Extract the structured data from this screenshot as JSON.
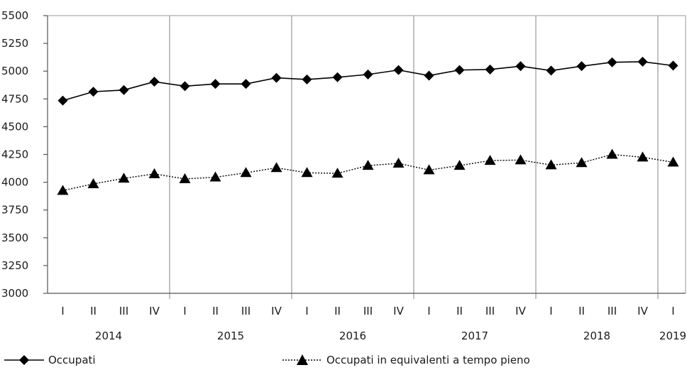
{
  "chart_data": {
    "type": "line",
    "title": "",
    "xlabel": "",
    "ylabel": "",
    "ylim": [
      3000,
      5500
    ],
    "yticks": [
      3000,
      3250,
      3500,
      3750,
      4000,
      4250,
      4500,
      4750,
      5000,
      5250,
      5500
    ],
    "quarters": [
      "I",
      "II",
      "III",
      "IV",
      "I",
      "II",
      "III",
      "IV",
      "I",
      "II",
      "III",
      "IV",
      "I",
      "II",
      "III",
      "IV",
      "I",
      "II",
      "III",
      "IV",
      "I"
    ],
    "years": [
      {
        "label": "2014",
        "start": 0,
        "end": 3
      },
      {
        "label": "2015",
        "start": 4,
        "end": 7
      },
      {
        "label": "2016",
        "start": 8,
        "end": 11
      },
      {
        "label": "2017",
        "start": 12,
        "end": 15
      },
      {
        "label": "2018",
        "start": 16,
        "end": 19
      },
      {
        "label": "2019",
        "start": 20,
        "end": 20
      }
    ],
    "grid": "vertical year separators",
    "legend_position": "bottom",
    "series": [
      {
        "name": "Occupati",
        "marker": "diamond",
        "line": "solid",
        "values": [
          4735,
          4815,
          4830,
          4905,
          4865,
          4885,
          4885,
          4940,
          4925,
          4945,
          4970,
          5010,
          4960,
          5010,
          5015,
          5045,
          5005,
          5045,
          5080,
          5085,
          5050
        ]
      },
      {
        "name": "Occupati in equivalenti a tempo pieno",
        "marker": "triangle",
        "line": "dotted",
        "values": [
          3925,
          3985,
          4035,
          4075,
          4030,
          4045,
          4085,
          4130,
          4085,
          4080,
          4150,
          4170,
          4110,
          4150,
          4195,
          4200,
          4155,
          4175,
          4250,
          4225,
          4180
        ]
      }
    ]
  },
  "legend": {
    "occupati": "Occupati",
    "fte": "Occupati in equivalenti a tempo pieno"
  }
}
